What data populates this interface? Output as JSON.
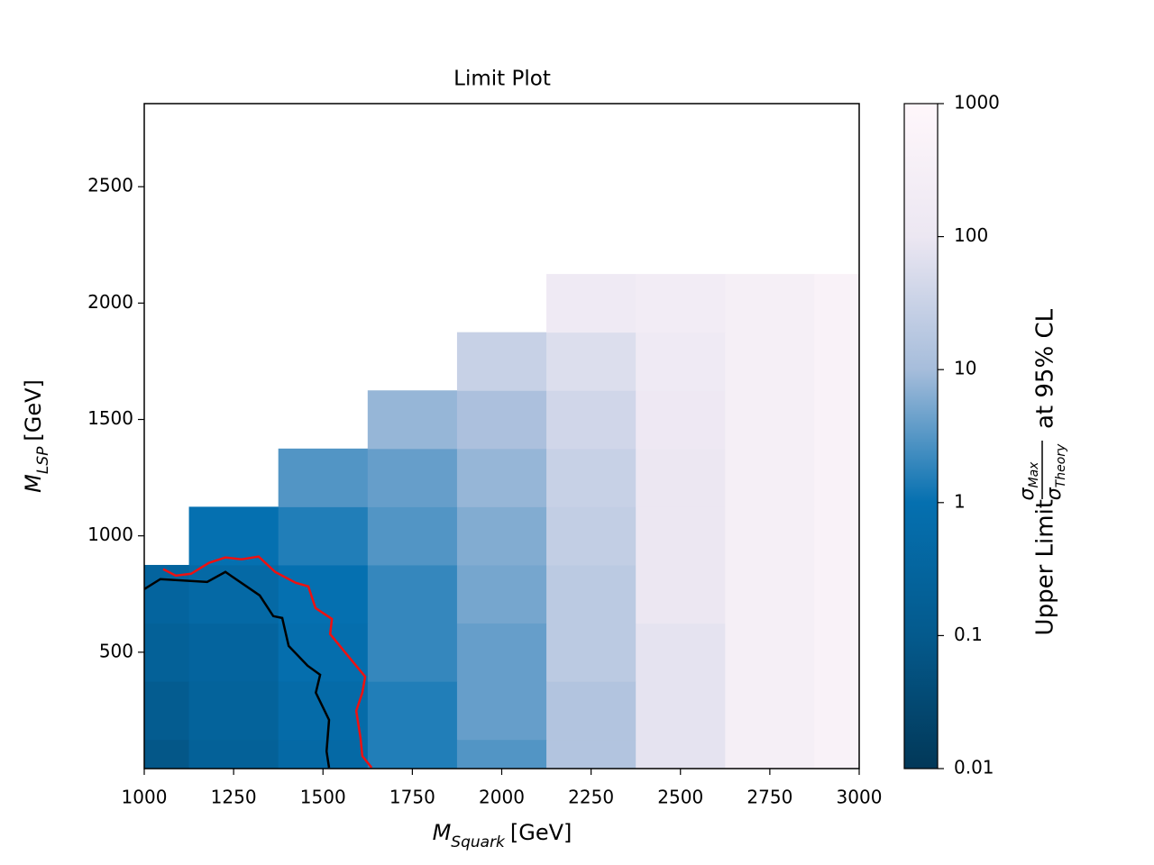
{
  "chart_data": {
    "type": "heatmap",
    "title": "Limit Plot",
    "xlabel": {
      "symbol": "M",
      "sub": "Squark",
      "unit": "[GeV]"
    },
    "ylabel": {
      "symbol": "M",
      "sub": "LSP",
      "unit": "[GeV]"
    },
    "xlim": [
      1000,
      3000
    ],
    "xticks": [
      1000,
      1250,
      1500,
      1750,
      2000,
      2250,
      2500,
      2750,
      3000
    ],
    "ylim": [
      0,
      2857
    ],
    "yticks": [
      500,
      1000,
      1500,
      2000,
      2500
    ],
    "heatmap": {
      "x": [
        1000,
        1250,
        1500,
        1750,
        2000,
        2250,
        2500,
        2750,
        3000
      ],
      "y": [
        0,
        250,
        500,
        750,
        1000,
        1250,
        1500,
        1750,
        2000
      ],
      "z": [
        [
          0.08,
          0.2,
          0.5,
          1.5,
          3,
          15,
          80,
          300,
          500
        ],
        [
          0.12,
          0.25,
          0.6,
          1.5,
          4,
          15,
          80,
          300,
          500
        ],
        [
          0.2,
          0.3,
          0.8,
          2,
          4,
          20,
          80,
          300,
          500
        ],
        [
          0.3,
          0.5,
          1,
          2,
          5,
          20,
          100,
          300,
          500
        ],
        [
          null,
          1,
          1.5,
          3,
          6,
          25,
          100,
          300,
          500
        ],
        [
          null,
          null,
          3,
          4,
          8,
          30,
          100,
          300,
          500
        ],
        [
          null,
          null,
          null,
          8,
          12,
          40,
          120,
          300,
          500
        ],
        [
          null,
          null,
          null,
          null,
          30,
          60,
          150,
          300,
          500
        ],
        [
          null,
          null,
          null,
          null,
          null,
          150,
          200,
          300,
          500
        ]
      ]
    },
    "colormap": [
      "#023858",
      "#045a8d",
      "#0570b0",
      "#a6bddb",
      "#ece7f2",
      "#fff7fb"
    ],
    "colorbar": {
      "log": true,
      "lim": [
        0.01,
        1000
      ],
      "ticks": [
        0.01,
        0.1,
        1,
        10,
        100,
        1000
      ],
      "label": {
        "prefix": "Upper Limit",
        "num": "σ",
        "num_sub": "Max",
        "den": "σ",
        "den_sub": "Theory",
        "suffix": "at 95% CL"
      }
    },
    "contours": [
      {
        "color": "#000000",
        "x": [
          1000,
          1045,
          1176,
          1227,
          1323,
          1361,
          1386,
          1404,
          1457,
          1492,
          1480,
          1517,
          1510,
          1517
        ],
        "y": [
          771,
          814,
          802,
          845,
          744,
          655,
          647,
          527,
          442,
          403,
          326,
          209,
          74,
          4
        ]
      },
      {
        "color": "#ee1111",
        "x": [
          1053,
          1088,
          1131,
          1181,
          1227,
          1272,
          1320,
          1366,
          1424,
          1459,
          1479,
          1525,
          1520,
          1568,
          1618,
          1610,
          1593,
          1605,
          1610,
          1636
        ],
        "y": [
          857,
          829,
          837,
          884,
          907,
          899,
          911,
          845,
          798,
          783,
          690,
          643,
          578,
          488,
          395,
          326,
          248,
          132,
          54,
          4
        ]
      }
    ]
  }
}
